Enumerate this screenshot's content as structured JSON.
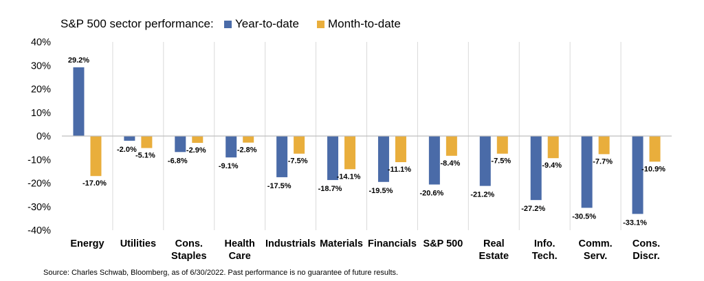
{
  "chart_data": {
    "type": "bar",
    "title": "S&P 500 sector performance:",
    "legend_placement": "top",
    "ylim": [
      -40,
      40
    ],
    "yticks": [
      40,
      30,
      20,
      10,
      0,
      -10,
      -20,
      -30,
      -40
    ],
    "ytick_labels": [
      "40%",
      "30%",
      "20%",
      "10%",
      "0%",
      "-10%",
      "-20%",
      "-30%",
      "-40%"
    ],
    "categories": [
      [
        "Energy"
      ],
      [
        "Utilities"
      ],
      [
        "Cons.",
        "Staples"
      ],
      [
        "Health",
        "Care"
      ],
      [
        "Industrials"
      ],
      [
        "Materials"
      ],
      [
        "Financials"
      ],
      [
        "S&P 500"
      ],
      [
        "Real",
        "Estate"
      ],
      [
        "Info.",
        "Tech."
      ],
      [
        "Comm.",
        "Serv."
      ],
      [
        "Cons.",
        "Discr."
      ]
    ],
    "series": [
      {
        "name": "Year-to-date",
        "color": "#4a6ba8",
        "values": [
          29.2,
          -2.0,
          -6.8,
          -9.1,
          -17.5,
          -18.7,
          -19.5,
          -20.6,
          -21.2,
          -27.2,
          -30.5,
          -33.1
        ],
        "labels": [
          "29.2%",
          "-2.0%",
          "-6.8%",
          "-9.1%",
          "-17.5%",
          "-18.7%",
          "-19.5%",
          "-20.6%",
          "-21.2%",
          "-27.2%",
          "-30.5%",
          "-33.1%"
        ]
      },
      {
        "name": "Month-to-date",
        "color": "#e9ae3c",
        "values": [
          -17.0,
          -5.1,
          -2.9,
          -2.8,
          -7.5,
          -14.1,
          -11.1,
          -8.4,
          -7.5,
          -9.4,
          -7.7,
          -10.9
        ],
        "labels": [
          "-17.0%",
          "-5.1%",
          "-2.9%",
          "-2.8%",
          "-7.5%",
          "-14.1%",
          "-11.1%",
          "-8.4%",
          "-7.5%",
          "-9.4%",
          "-7.7%",
          "-10.9%"
        ]
      }
    ],
    "grid": "vertical category separators",
    "source": "Source: Charles Schwab, Bloomberg, as of 6/30/2022. Past performance is no guarantee of future results."
  }
}
